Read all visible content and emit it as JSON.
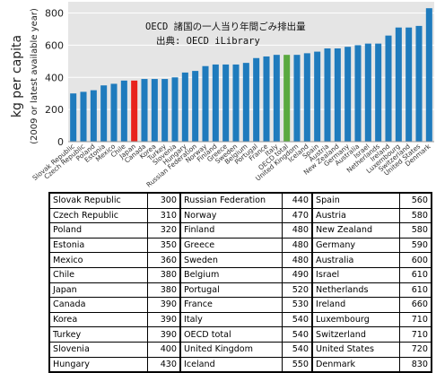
{
  "chart_data": {
    "type": "bar",
    "annotation": {
      "line1": "OECD 諸国の一人当り年間ごみ排出量",
      "line2": "出典: OECD iLibrary"
    },
    "ylabel": "kg per capita",
    "ylabel_sub": "(2009 or latest available year)",
    "xlabel": "",
    "ylim": [
      0,
      870
    ],
    "yticks": [
      0,
      200,
      400,
      600,
      800
    ],
    "grid": true,
    "colors": {
      "bar": "#1f7bbd",
      "highlight_japan": "#e8231c",
      "highlight_oecd": "#5aa93f",
      "plot_bg": "#e5e5e5",
      "grid": "#ffffff"
    },
    "categories": [
      "Slovak Republic",
      "Czech Republic",
      "Poland",
      "Estonia",
      "Mexico",
      "Chile",
      "Japan",
      "Canada",
      "Korea",
      "Turkey",
      "Slovenia",
      "Hungary",
      "Russian Federation",
      "Norway",
      "Finland",
      "Greece",
      "Sweden",
      "Belgium",
      "Portugal",
      "France",
      "Italy",
      "OECD total",
      "United Kingdom",
      "Iceland",
      "Spain",
      "Austria",
      "New Zealand",
      "Germany",
      "Australia",
      "Israel",
      "Netherlands",
      "Ireland",
      "Luxembourg",
      "Switzerland",
      "United States",
      "Denmark"
    ],
    "values": [
      300,
      310,
      320,
      350,
      360,
      380,
      380,
      390,
      390,
      390,
      400,
      430,
      440,
      470,
      480,
      480,
      480,
      490,
      520,
      530,
      540,
      540,
      540,
      550,
      560,
      580,
      580,
      590,
      600,
      610,
      610,
      660,
      710,
      710,
      720,
      830
    ],
    "highlight": {
      "Japan": "highlight_japan",
      "OECD total": "highlight_oecd"
    }
  },
  "table": {
    "rows": [
      [
        [
          "Slovak Republic",
          "300"
        ],
        [
          "Russian Federation",
          "440"
        ],
        [
          "Spain",
          "560"
        ]
      ],
      [
        [
          "Czech Republic",
          "310"
        ],
        [
          "Norway",
          "470"
        ],
        [
          "Austria",
          "580"
        ]
      ],
      [
        [
          "Poland",
          "320"
        ],
        [
          "Finland",
          "480"
        ],
        [
          "New Zealand",
          "580"
        ]
      ],
      [
        [
          "Estonia",
          "350"
        ],
        [
          "Greece",
          "480"
        ],
        [
          "Germany",
          "590"
        ]
      ],
      [
        [
          "Mexico",
          "360"
        ],
        [
          "Sweden",
          "480"
        ],
        [
          "Australia",
          "600"
        ]
      ],
      [
        [
          "Chile",
          "380"
        ],
        [
          "Belgium",
          "490"
        ],
        [
          "Israel",
          "610"
        ]
      ],
      [
        [
          "Japan",
          "380"
        ],
        [
          "Portugal",
          "520"
        ],
        [
          "Netherlands",
          "610"
        ]
      ],
      [
        [
          "Canada",
          "390"
        ],
        [
          "France",
          "530"
        ],
        [
          "Ireland",
          "660"
        ]
      ],
      [
        [
          "Korea",
          "390"
        ],
        [
          "Italy",
          "540"
        ],
        [
          "Luxembourg",
          "710"
        ]
      ],
      [
        [
          "Turkey",
          "390"
        ],
        [
          "OECD total",
          "540"
        ],
        [
          "Switzerland",
          "710"
        ]
      ],
      [
        [
          "Slovenia",
          "400"
        ],
        [
          "United Kingdom",
          "540"
        ],
        [
          "United States",
          "720"
        ]
      ],
      [
        [
          "Hungary",
          "430"
        ],
        [
          "Iceland",
          "550"
        ],
        [
          "Denmark",
          "830"
        ]
      ]
    ]
  }
}
